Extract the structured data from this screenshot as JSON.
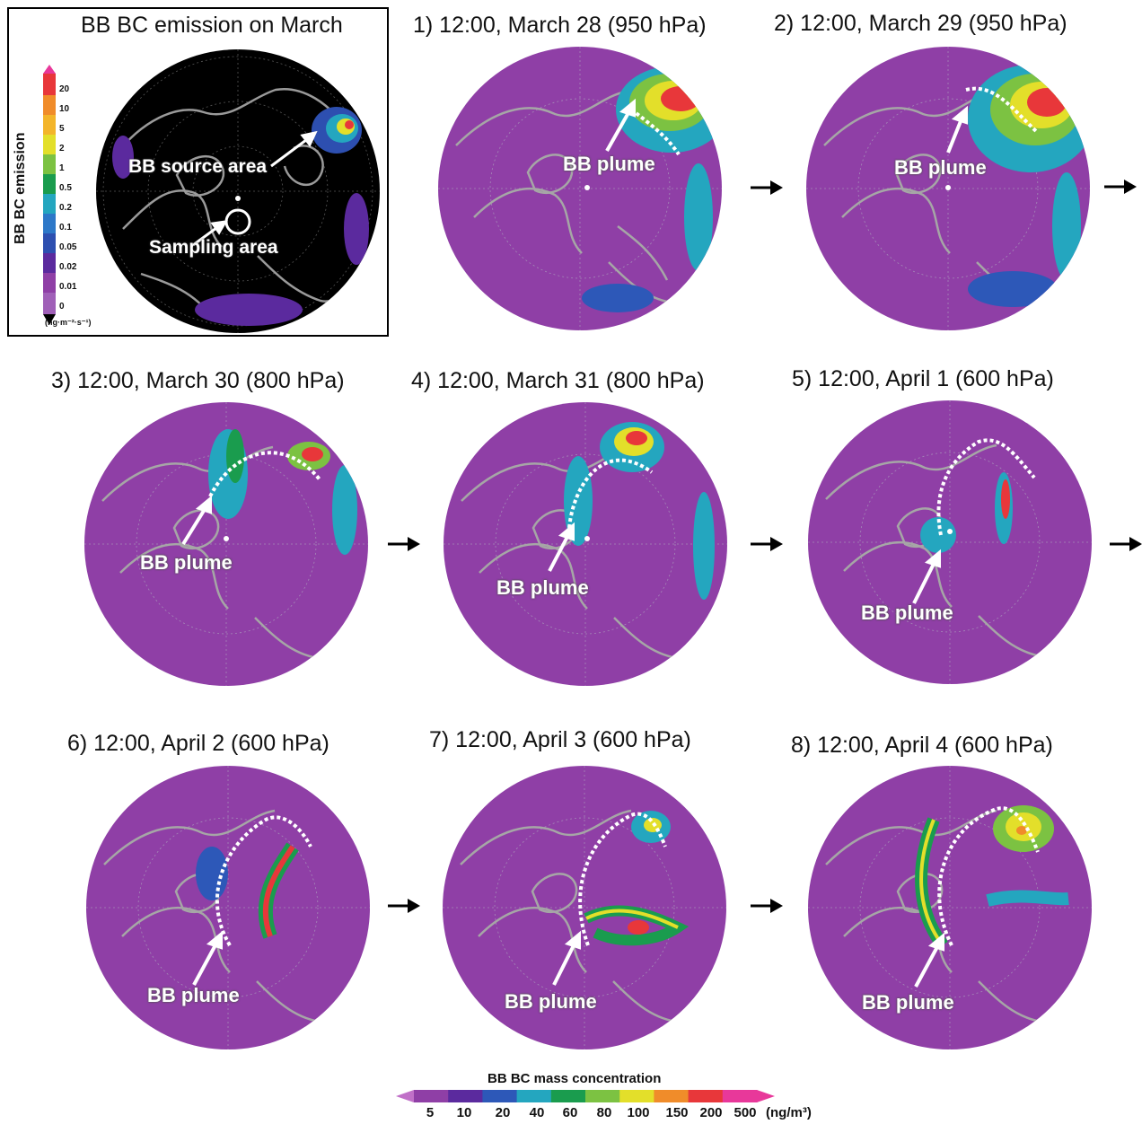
{
  "emission_panel": {
    "title": "BB BC emission on March",
    "source_label": "BB source area",
    "sampling_label": "Sampling area",
    "legend_title": "BB BC emission",
    "legend_ticks": [
      "20",
      "10",
      "5",
      "2",
      "1",
      "0.5",
      "0.2",
      "0.1",
      "0.05",
      "0.02",
      "0.01",
      "0"
    ],
    "legend_unit": "(ng·m⁻²·s⁻¹)"
  },
  "panels": [
    {
      "title": "1) 12:00, March 28 (950 hPa)",
      "label": "BB plume"
    },
    {
      "title": "2) 12:00, March 29 (950 hPa)",
      "label": "BB plume"
    },
    {
      "title": "3) 12:00, March 30 (800 hPa)",
      "label": "BB plume"
    },
    {
      "title": "4) 12:00, March 31 (800 hPa)",
      "label": "BB plume"
    },
    {
      "title": "5) 12:00, April 1 (600 hPa)",
      "label": "BB plume"
    },
    {
      "title": "6) 12:00, April 2 (600 hPa)",
      "label": "BB plume"
    },
    {
      "title": "7) 12:00, April 3 (600 hPa)",
      "label": "BB plume"
    },
    {
      "title": "8) 12:00, April 4 (600 hPa)",
      "label": "BB plume"
    }
  ],
  "colorbar": {
    "title": "BB BC mass concentration",
    "ticks": [
      "5",
      "10",
      "20",
      "40",
      "60",
      "80",
      "100",
      "150",
      "200",
      "500"
    ],
    "unit": "(ng/m³)",
    "colors": [
      "#8f3fa6",
      "#5b2a9e",
      "#2d58b8",
      "#24a6bf",
      "#1a9c4e",
      "#7cc242",
      "#e3df2a",
      "#f08c2a",
      "#e8373a",
      "#e8389a"
    ]
  }
}
